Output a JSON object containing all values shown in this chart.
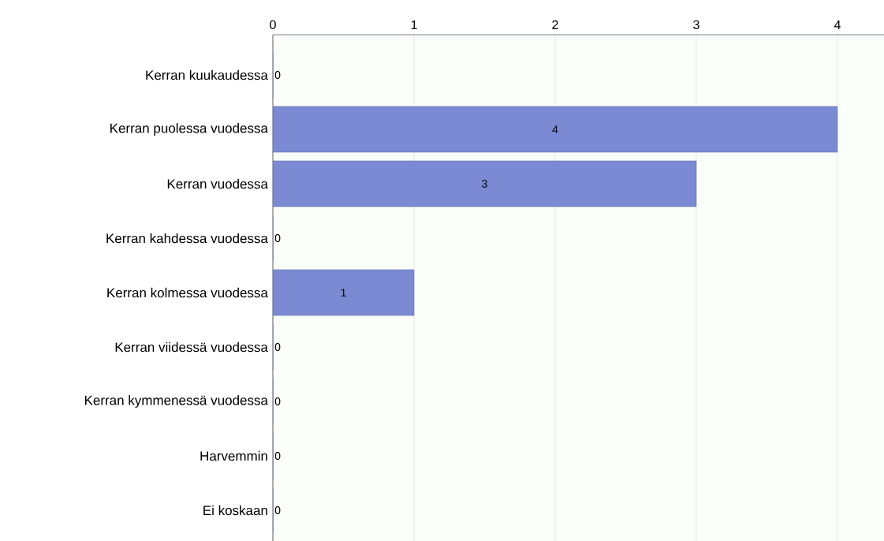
{
  "chart_data": {
    "type": "bar",
    "orientation": "horizontal",
    "categories": [
      "Kerran kuukaudessa",
      "Kerran puolessa vuodessa",
      "Kerran vuodessa",
      "Kerran kahdessa vuodessa",
      "Kerran kolmessa vuodessa",
      "Kerran viidessä vuodessa",
      "Kerran kymmenessä vuodessa",
      "Harvemmin",
      "Ei koskaan"
    ],
    "values": [
      0,
      4,
      3,
      0,
      1,
      0,
      0,
      0,
      0
    ],
    "color": "#7b8ad3",
    "xlim": [
      0,
      4.33
    ],
    "xticks": [
      0,
      1,
      2,
      3,
      4
    ],
    "grid": "x",
    "data_labels": true
  }
}
